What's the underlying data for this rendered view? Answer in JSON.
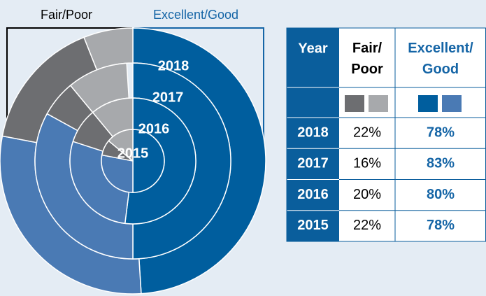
{
  "chart_data": {
    "type": "nested-donut",
    "categories": [
      "2018",
      "2017",
      "2016",
      "2015"
    ],
    "year_header": "Year",
    "series": [
      {
        "name": "Fair/Poor",
        "color": "#000000",
        "colors": [
          "#6d6e71",
          "#a7a9ac"
        ],
        "values": [
          22,
          16,
          20,
          22
        ],
        "value_labels": [
          "22%",
          "16%",
          "20%",
          "22%"
        ],
        "parts": [
          [
            16,
            6
          ],
          [
            6,
            10
          ],
          [
            9,
            11
          ],
          [
            8,
            14
          ]
        ]
      },
      {
        "name": "Excellent/Good",
        "color": "#1565a6",
        "colors": [
          "#005e9e",
          "#4a7ab4"
        ],
        "values": [
          78,
          83,
          80,
          78
        ],
        "value_labels": [
          "78%",
          "83%",
          "80%",
          "78%"
        ],
        "parts": [
          [
            49,
            29
          ],
          [
            50,
            33
          ],
          [
            52,
            28
          ],
          [
            50,
            28
          ]
        ]
      }
    ]
  }
}
